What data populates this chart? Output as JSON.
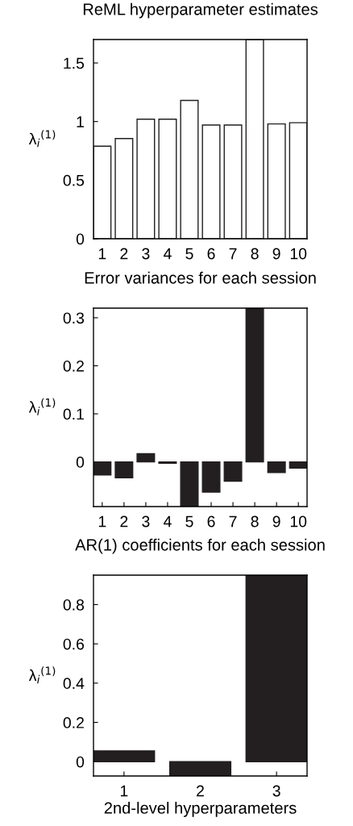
{
  "chart_data": [
    {
      "type": "bar",
      "title": "ReML hyperparameter estimates",
      "ylabel": "λ$_{i}$$^{(1)}$",
      "categories": [
        "1",
        "2",
        "3",
        "4",
        "5",
        "6",
        "7",
        "8",
        "9",
        "10"
      ],
      "values": [
        0.79,
        0.855,
        1.02,
        1.02,
        1.18,
        0.97,
        0.97,
        1.7,
        0.98,
        0.99
      ],
      "color": "#ffffff",
      "ylim": [
        0,
        1.7
      ],
      "yticks": [
        0,
        0.5,
        1,
        1.5
      ]
    },
    {
      "type": "bar",
      "title": "Error variances for each session",
      "ylabel": "λ$_{i}$$^{(1)}$",
      "categories": [
        "1",
        "2",
        "3",
        "4",
        "5",
        "6",
        "7",
        "8",
        "9",
        "10"
      ],
      "values": [
        -0.027,
        -0.033,
        0.017,
        -0.003,
        -0.093,
        -0.063,
        -0.04,
        0.32,
        -0.022,
        -0.013
      ],
      "color": "#231f20",
      "ylim": [
        -0.093,
        0.32
      ],
      "yticks": [
        0,
        0.1,
        0.2,
        0.3
      ]
    },
    {
      "type": "bar",
      "title": "AR(1) coefficients for each session",
      "ylabel": "λ$_{i}$$^{(1)}$",
      "xlabel": "2nd-level hyperparameters",
      "categories": [
        "1",
        "2",
        "3"
      ],
      "values": [
        0.055,
        -0.073,
        0.95
      ],
      "color": "#231f20",
      "ylim": [
        -0.073,
        0.95
      ],
      "yticks": [
        0,
        0.2,
        0.4,
        0.6,
        0.8
      ]
    }
  ]
}
